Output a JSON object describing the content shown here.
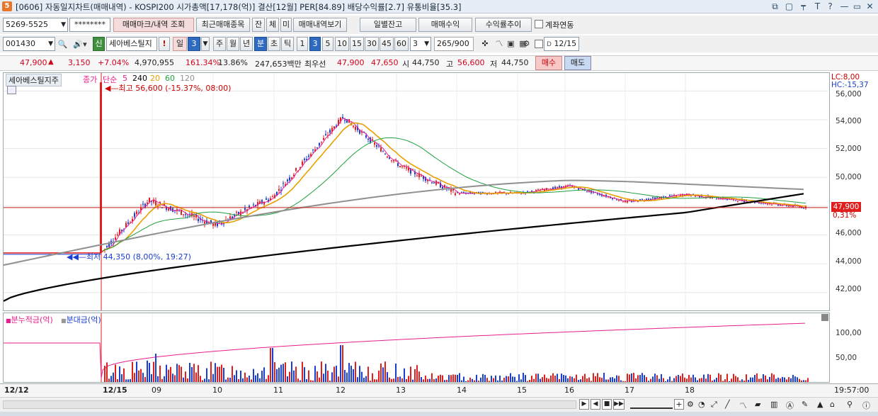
{
  "window": {
    "app_icon": "5",
    "title": "[0606] 자동일지차트(매매내역) - KOSPI200 시가총액[17,178(억)] 결산[12월] PER[84.89] 배당수익률[2.7] 유통비율[35.3]",
    "controls": [
      "⧉",
      "▢",
      "📌",
      "T",
      "?",
      "—",
      "▭",
      "✕"
    ]
  },
  "toolbar1": {
    "account": "5269-5525",
    "password": "********",
    "btn_trade_marks": "매매마크/내역 조회",
    "btn_recent": "최근매매종목",
    "btn_jan": "잔",
    "btn_che": "체",
    "btn_mi": "미",
    "btn_history": "매매내역보기",
    "btn_daily_balance": "일별잔고",
    "btn_trade_profit": "매매수익",
    "btn_return_trend": "수익률추이",
    "chk_account_link": "계좌연동"
  },
  "toolbar2": {
    "code": "001430",
    "sin": "신",
    "stock_name": "세아베스틸지",
    "btn_excl": "!",
    "btn_day": "일",
    "day_num": "3",
    "btn_week": "주",
    "btn_month": "월",
    "btn_year": "년",
    "btn_min": "분",
    "btn_sec": "초",
    "btn_tick": "틱",
    "intervals": [
      "1",
      "3",
      "5",
      "10",
      "15",
      "30",
      "45",
      "60"
    ],
    "interval_value": "3",
    "count": "265",
    "total": "/900",
    "date": "12/15"
  },
  "quote": {
    "price": "47,900",
    "arrow": "▲",
    "change": "3,150",
    "change_pct": "+7.04%",
    "volume": "4,970,955",
    "vol_pct": "161.34%",
    "turnover": "13.86%",
    "amount": "247,653백만",
    "best_sell_label": "최우선",
    "best_sell": "47,900",
    "best_buy": "47,650",
    "open_label": "시",
    "open": "44,750",
    "high_label": "고",
    "high": "56,600",
    "low_label": "저",
    "low": "44,750",
    "buy_btn": "매수",
    "sell_btn": "매도"
  },
  "chart": {
    "stock_label": "세아베스틸지주",
    "legend": {
      "type": "종가",
      "method": "단순",
      "ma": [
        {
          "period": "5",
          "color": "#e91e8c"
        },
        {
          "period": "240",
          "color": "#000000"
        },
        {
          "period": "20",
          "color": "#e8a000"
        },
        {
          "period": "60",
          "color": "#20a040"
        },
        {
          "period": "120",
          "color": "#909090"
        }
      ]
    },
    "high_annotation": "최고 56,600 (-15.37%, 08:00)",
    "low_annotation": "최저 44,350 (8,00%, 19:27)",
    "lc": "LC:8,00",
    "hc": "HC:-15,37",
    "current_price": "47,900",
    "current_pct": "0,31%",
    "y_ticks": [
      "56,000",
      "54,000",
      "52,000",
      "50,000",
      "48,000",
      "46,000",
      "44,000",
      "42,000"
    ],
    "sub_legend": {
      "s1": "분누적금(억)",
      "s2": "분대금(억)"
    },
    "sub_y_ticks": [
      "100,00",
      "50,00"
    ],
    "x_labels": [
      "12/12",
      "12/15",
      "09",
      "10",
      "11",
      "12",
      "13",
      "14",
      "15",
      "16",
      "17",
      "18"
    ],
    "time_right": "19:57:00"
  },
  "chart_data": {
    "type": "line",
    "title": "세아베스틸지주",
    "ylim": [
      41000,
      57000
    ],
    "series": [
      {
        "name": "종가",
        "x": [
          "12/12",
          "12/15 08:00",
          "09",
          "10",
          "11",
          "12",
          "13",
          "14",
          "15",
          "16",
          "17",
          "18"
        ],
        "values": [
          44750,
          47200,
          48400,
          46700,
          48600,
          53800,
          50800,
          48900,
          48900,
          48900,
          48100,
          47900
        ]
      },
      {
        "name": "240",
        "x": [
          "12/12",
          "12/15 08:00",
          "09",
          "10",
          "11",
          "12",
          "13",
          "14",
          "15",
          "16",
          "17",
          "18"
        ],
        "values": [
          41400,
          42900,
          44300,
          45200,
          45900,
          46900,
          47300,
          47600,
          47800,
          48100,
          48400,
          48900
        ]
      }
    ]
  }
}
